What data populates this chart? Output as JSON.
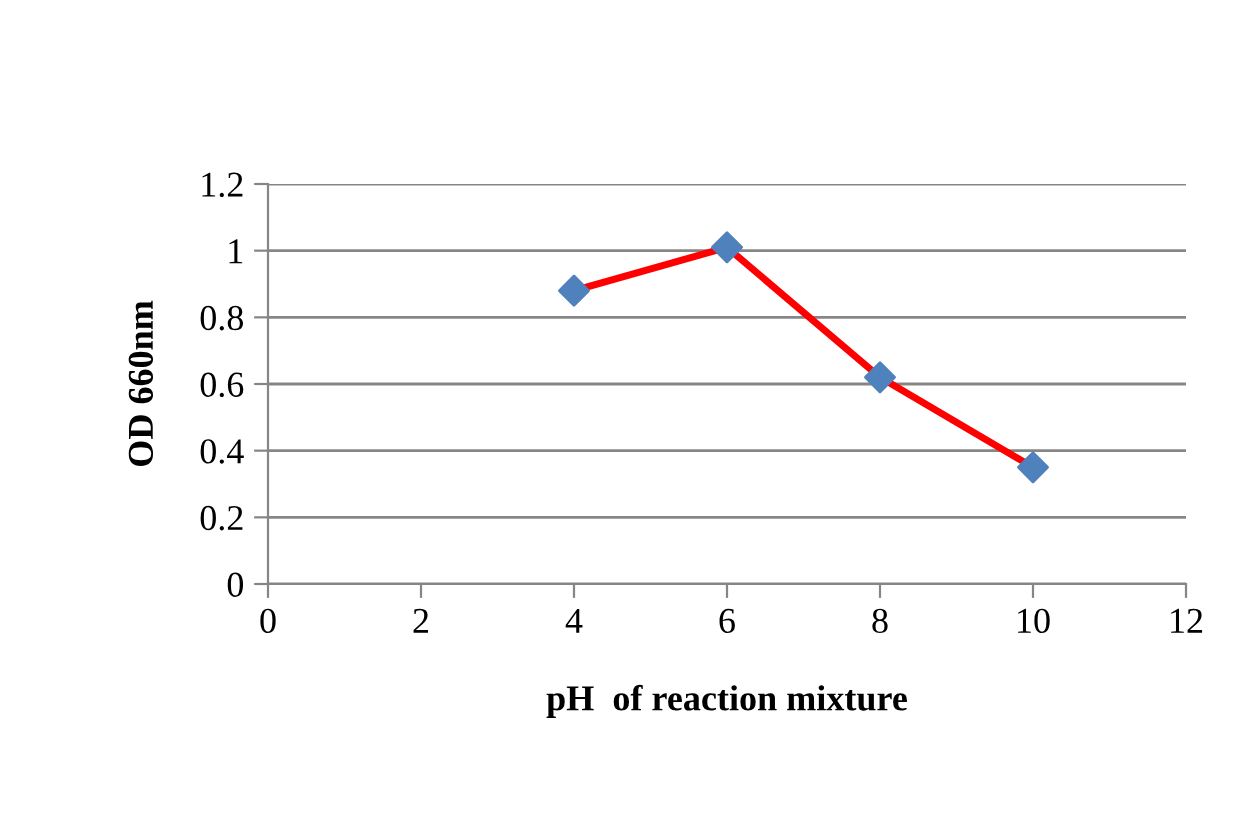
{
  "chart_data": {
    "type": "line",
    "xlabel": "pH  of reaction mixture",
    "ylabel": "OD 660nm",
    "x": [
      4,
      6,
      8,
      10
    ],
    "series": [
      {
        "color": "#ff0000",
        "colors": [
          "#4f81bd",
          "#4f81bd",
          "#4f81bd",
          "#4f81bd"
        ],
        "values": [
          0.88,
          1.01,
          0.62,
          0.35
        ]
      }
    ],
    "xlim": [
      0,
      12
    ],
    "xticks": [
      0,
      2,
      4,
      6,
      8,
      10,
      12
    ],
    "ylim": [
      0,
      1.2
    ],
    "yticks": [
      0,
      0.2,
      0.4,
      0.6,
      0.8,
      1,
      1.2
    ],
    "grid": "y",
    "marker": "diamond",
    "line_style": "solid",
    "legend": false
  }
}
